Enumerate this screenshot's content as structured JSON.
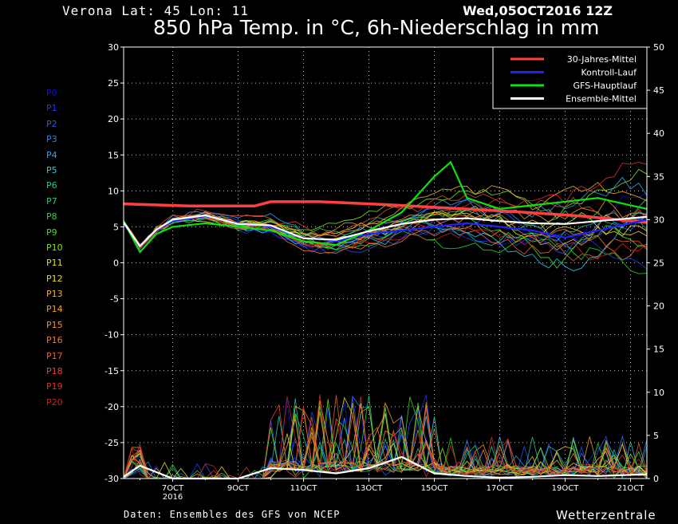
{
  "header": {
    "location": "Verona   Lat: 45 Lon: 11",
    "run": "Wed,05OCT2016 12Z",
    "title": "850 hPa Temp. in °C, 6h-Niederschlag in mm"
  },
  "footer": {
    "source": "Daten: Ensembles des GFS von NCEP",
    "brand": "Wetterzentrale"
  },
  "members": [
    "P0",
    "P1",
    "P2",
    "P3",
    "P4",
    "P5",
    "P6",
    "P7",
    "P8",
    "P9",
    "P10",
    "P11",
    "P12",
    "P13",
    "P14",
    "P15",
    "P16",
    "P17",
    "P18",
    "P19",
    "P20"
  ],
  "member_colors": [
    "#1010d0",
    "#1a3cf0",
    "#1e5af5",
    "#2a80f5",
    "#30a0f0",
    "#30c8e8",
    "#20c8a0",
    "#20d070",
    "#20d830",
    "#40e020",
    "#80e020",
    "#e0e020",
    "#f0d030",
    "#f0b030",
    "#f0a030",
    "#f09030",
    "#f07830",
    "#e86030",
    "#e04830",
    "#d83030",
    "#d02020"
  ],
  "chart_data": {
    "type": "line",
    "x_unit": "date (UTC)",
    "x_range": [
      "05OCT2016 12Z",
      "21OCT2016 12Z"
    ],
    "x_ticks": [
      "7OCT",
      "9OCT",
      "11OCT",
      "13OCT",
      "15OCT",
      "17OCT",
      "19OCT",
      "21OCT"
    ],
    "x_tick_sub": "2016",
    "left_axis": {
      "label": "850 hPa Temp. (°C)",
      "ylim": [
        -30,
        30
      ],
      "ticks": [
        30,
        25,
        20,
        15,
        10,
        5,
        0,
        -5,
        -10,
        -15,
        -20,
        -25,
        -30
      ]
    },
    "right_axis": {
      "label": "6h-Niederschlag (mm)",
      "ylim": [
        0,
        50
      ],
      "ticks": [
        50,
        45,
        40,
        35,
        30,
        25,
        20,
        15,
        10,
        5,
        0
      ]
    },
    "grid": true,
    "legend_position": "top-right",
    "series": [
      {
        "name": "30-Jahres-Mittel",
        "color": "#ff4040",
        "axis": "left",
        "x": [
          "05OCT 12Z",
          "07OCT 12Z",
          "09OCT 12Z",
          "10OCT 00Z",
          "11OCT 12Z",
          "13OCT 12Z",
          "15OCT 12Z",
          "17OCT 12Z",
          "19OCT 12Z",
          "21OCT 12Z"
        ],
        "values": [
          8.2,
          7.9,
          7.9,
          8.5,
          8.5,
          8.1,
          7.6,
          7.1,
          6.5,
          5.6
        ]
      },
      {
        "name": "Kontroll-Lauf",
        "color": "#2020ff",
        "axis": "left",
        "x": [
          "05OCT 12Z",
          "06OCT 00Z",
          "06OCT 12Z",
          "07OCT 00Z",
          "08OCT 00Z",
          "09OCT 00Z",
          "10OCT 00Z",
          "11OCT 00Z",
          "12OCT 00Z",
          "13OCT 00Z",
          "14OCT 00Z",
          "15OCT 00Z",
          "16OCT 00Z",
          "17OCT 00Z",
          "18OCT 00Z",
          "19OCT 00Z",
          "20OCT 00Z",
          "21OCT 00Z",
          "21OCT 12Z"
        ],
        "values": [
          5.5,
          2.2,
          4.5,
          5.8,
          6.5,
          5.5,
          5.0,
          3.5,
          3.0,
          4.0,
          4.5,
          5.0,
          5.5,
          5.0,
          4.5,
          3.5,
          4.5,
          5.5,
          6.0
        ]
      },
      {
        "name": "GFS-Hauptlauf",
        "color": "#10e010",
        "axis": "left",
        "x": [
          "05OCT 12Z",
          "06OCT 00Z",
          "06OCT 12Z",
          "07OCT 00Z",
          "08OCT 00Z",
          "09OCT 00Z",
          "10OCT 00Z",
          "11OCT 00Z",
          "12OCT 00Z",
          "13OCT 00Z",
          "14OCT 00Z",
          "15OCT 00Z",
          "15OCT 12Z",
          "16OCT 00Z",
          "17OCT 00Z",
          "18OCT 00Z",
          "19OCT 00Z",
          "20OCT 00Z",
          "21OCT 00Z",
          "21OCT 12Z"
        ],
        "values": [
          5.8,
          1.5,
          4.0,
          5.0,
          5.5,
          5.0,
          4.5,
          3.0,
          2.5,
          4.5,
          7.0,
          12.0,
          14.0,
          9.0,
          7.5,
          8.0,
          8.5,
          9.0,
          8.0,
          7.5
        ]
      },
      {
        "name": "Ensemble-Mittel",
        "color": "#ffffff",
        "axis": "left",
        "x": [
          "05OCT 12Z",
          "06OCT 00Z",
          "06OCT 12Z",
          "07OCT 00Z",
          "08OCT 00Z",
          "09OCT 00Z",
          "10OCT 00Z",
          "11OCT 00Z",
          "12OCT 00Z",
          "13OCT 00Z",
          "14OCT 00Z",
          "15OCT 00Z",
          "16OCT 00Z",
          "17OCT 00Z",
          "18OCT 00Z",
          "19OCT 00Z",
          "20OCT 00Z",
          "21OCT 00Z",
          "21OCT 12Z"
        ],
        "values": [
          5.6,
          2.3,
          4.6,
          6.0,
          6.6,
          5.4,
          5.2,
          3.4,
          3.2,
          4.4,
          5.4,
          6.0,
          6.2,
          5.8,
          5.5,
          5.4,
          5.8,
          6.2,
          6.4
        ]
      },
      {
        "name": "Ensemble-Mittel Niederschlag",
        "color": "#ffffff",
        "axis": "right",
        "x": [
          "05OCT 12Z",
          "06OCT 00Z",
          "07OCT 00Z",
          "09OCT 00Z",
          "10OCT 00Z",
          "11OCT 00Z",
          "12OCT 00Z",
          "13OCT 00Z",
          "14OCT 00Z",
          "15OCT 00Z",
          "16OCT 00Z",
          "17OCT 00Z",
          "18OCT 00Z",
          "19OCT 00Z",
          "20OCT 00Z",
          "21OCT 12Z"
        ],
        "values": [
          0.2,
          1.5,
          0.0,
          0.0,
          1.2,
          1.0,
          0.6,
          1.2,
          2.5,
          0.6,
          0.3,
          0.1,
          0.2,
          0.4,
          0.3,
          0.5
        ]
      }
    ]
  }
}
